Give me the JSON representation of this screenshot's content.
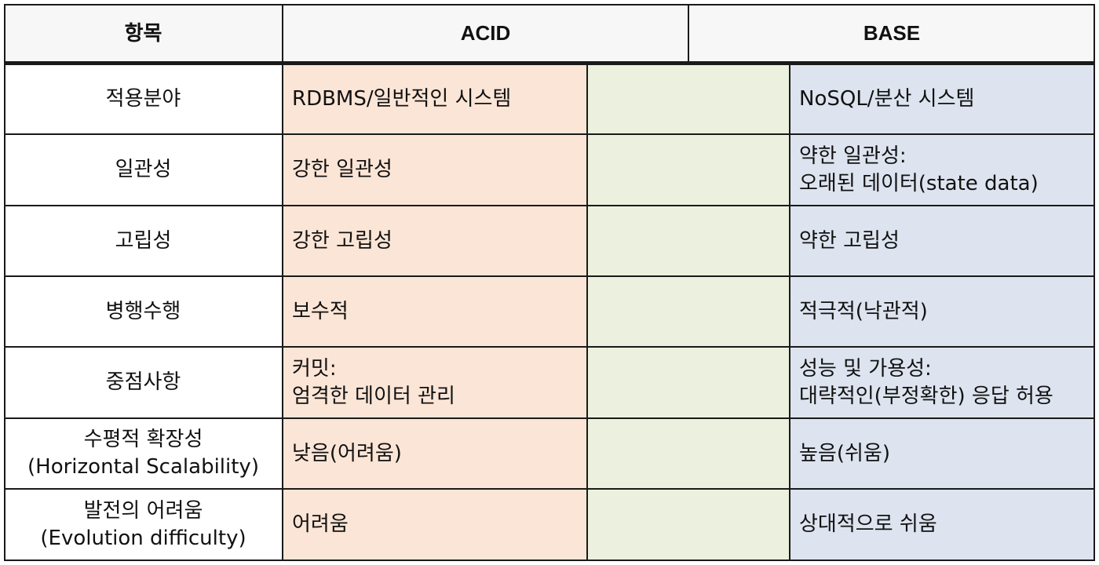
{
  "colors": {
    "header_bg": "#f7f7f7",
    "acid_bg": "#fbe5d6",
    "middle_bg": "#ebf1de",
    "base_bg": "#dde4ef",
    "border": "#1a1a1a"
  },
  "header": {
    "item": "항목",
    "acid": "ACID",
    "base": "BASE"
  },
  "rows": [
    {
      "item": [
        "적용분야"
      ],
      "acid": [
        "RDBMS/일반적인 시스템"
      ],
      "base": [
        "NoSQL/분산 시스템"
      ]
    },
    {
      "item": [
        "일관성"
      ],
      "acid": [
        "강한 일관성"
      ],
      "base": [
        "약한 일관성:",
        "오래된 데이터(state data)"
      ]
    },
    {
      "item": [
        "고립성"
      ],
      "acid": [
        "강한 고립성"
      ],
      "base": [
        "약한 고립성"
      ]
    },
    {
      "item": [
        "병행수행"
      ],
      "acid": [
        "보수적"
      ],
      "base": [
        "적극적(낙관적)"
      ]
    },
    {
      "item": [
        "중점사항"
      ],
      "acid": [
        "커밋:",
        "엄격한 데이터 관리"
      ],
      "base": [
        "성능 및 가용성:",
        "대략적인(부정확한) 응답 허용"
      ]
    },
    {
      "item": [
        "수평적 확장성",
        "(Horizontal Scalability)"
      ],
      "acid": [
        "낮음(어려움)"
      ],
      "base": [
        "높음(쉬움)"
      ]
    },
    {
      "item": [
        "발전의 어려움",
        "(Evolution difficulty)"
      ],
      "acid": [
        "어려움"
      ],
      "base": [
        "상대적으로 쉬움"
      ]
    }
  ]
}
